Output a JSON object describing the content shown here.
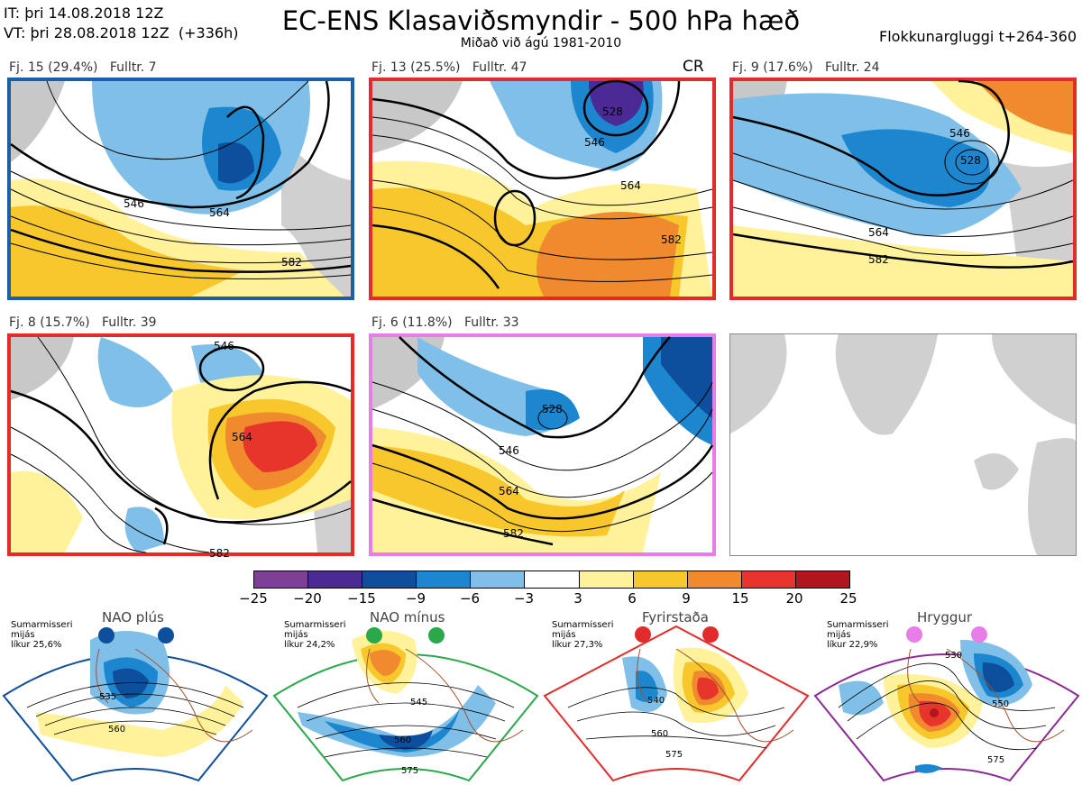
{
  "header": {
    "it_line": "IT: þri 14.08.2018 12Z",
    "vt_line": "VT: þri 28.08.2018 12Z  (+336h)",
    "title": "EC-ENS Klasaviðsmyndir - 500 hPa hæð",
    "subtitle": "Miðað við ágú 1981-2010",
    "window": "Flokkunargluggi t+264-360"
  },
  "panels": [
    {
      "label": "Fj. 15 (29.4%)",
      "fulltr": "Fulltr. 7",
      "frame_color": "#1a5fa8",
      "contour_labels": [
        "546",
        "564",
        "582"
      ]
    },
    {
      "label": "Fj. 13 (25.5%)",
      "fulltr": "Fulltr. 47",
      "tag": "CR",
      "frame_color": "#e32b2b",
      "contour_labels": [
        "528",
        "546",
        "564",
        "582"
      ]
    },
    {
      "label": "Fj. 9 (17.6%)",
      "fulltr": "Fulltr. 24",
      "frame_color": "#e32b2b",
      "contour_labels": [
        "528",
        "546",
        "564",
        "582"
      ]
    },
    {
      "label": "Fj. 8 (15.7%)",
      "fulltr": "Fulltr. 39",
      "frame_color": "#e32b2b",
      "contour_labels": [
        "546",
        "564",
        "582"
      ]
    },
    {
      "label": "Fj. 6 (11.8%)",
      "fulltr": "Fulltr. 33",
      "frame_color": "#e87de8",
      "contour_labels": [
        "528",
        "546",
        "564",
        "582"
      ]
    }
  ],
  "colorbar": {
    "labels": [
      "−25",
      "−20",
      "−15",
      "−9",
      "−6",
      "−3",
      "3",
      "6",
      "9",
      "15",
      "20",
      "25"
    ],
    "colors": [
      "#7f3f98",
      "#4b2a96",
      "#0d4f9c",
      "#1c86cf",
      "#7fbfe8",
      "#ffffff",
      "#fff29a",
      "#f7c72b",
      "#f08a2e",
      "#e8352b",
      "#b0161d"
    ]
  },
  "regimes": [
    {
      "name": "NAO plús",
      "line1": "Sumarmisseri",
      "line2": "mijás",
      "line3": "líkur 25,6%",
      "color": "#0d4f9c",
      "contour_labels": [
        "535",
        "560"
      ]
    },
    {
      "name": "NAO mínus",
      "line1": "Sumarmisseri",
      "line2": "mijás",
      "line3": "líkur 24,2%",
      "color": "#2aa84a",
      "contour_labels": [
        "545",
        "560",
        "575"
      ]
    },
    {
      "name": "Fyrirstaða",
      "line1": "Sumarmisseri",
      "line2": "mijás",
      "line3": "líkur 27,3%",
      "color": "#e32b2b",
      "contour_labels": [
        "540",
        "560",
        "575"
      ]
    },
    {
      "name": "Hryggur",
      "line1": "Sumarmisseri",
      "line2": "mijás",
      "line3": "líkur 22,9%",
      "color": "#e87de8",
      "contour_labels": [
        "530",
        "550",
        "575"
      ]
    }
  ]
}
